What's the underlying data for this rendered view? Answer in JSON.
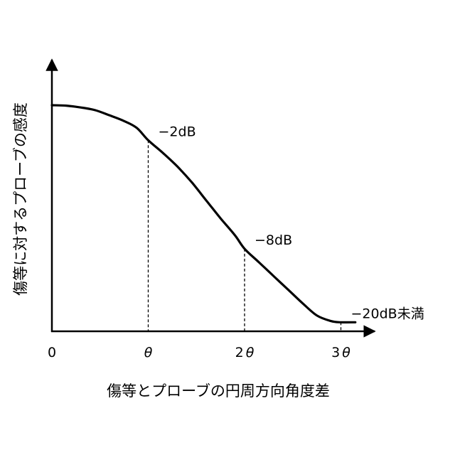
{
  "chart_data": {
    "type": "line",
    "xlabel": "傷等とプローブの円周方向角度差",
    "ylabel": "傷等に対するプローブの感度",
    "x_ticks": [
      {
        "x": 0,
        "label_parts": [
          {
            "text": "0",
            "italic": false
          }
        ]
      },
      {
        "x": 1,
        "label_parts": [
          {
            "text": "θ",
            "italic": true
          }
        ]
      },
      {
        "x": 2,
        "label_parts": [
          {
            "text": "2",
            "italic": false
          },
          {
            "text": "θ",
            "italic": true
          }
        ]
      },
      {
        "x": 3,
        "label_parts": [
          {
            "text": "3",
            "italic": false
          },
          {
            "text": "θ",
            "italic": true
          }
        ]
      }
    ],
    "xlim": [
      0,
      3.35
    ],
    "ylim": [
      0,
      1
    ],
    "series": [
      {
        "values_y_fraction_of_axis": [
          [
            0.0,
            1.0
          ],
          [
            0.15,
            0.998
          ],
          [
            0.3,
            0.99
          ],
          [
            0.45,
            0.978
          ],
          [
            0.6,
            0.955
          ],
          [
            0.75,
            0.93
          ],
          [
            0.88,
            0.9
          ],
          [
            1.0,
            0.845
          ],
          [
            1.15,
            0.79
          ],
          [
            1.3,
            0.73
          ],
          [
            1.45,
            0.66
          ],
          [
            1.6,
            0.58
          ],
          [
            1.75,
            0.5
          ],
          [
            1.9,
            0.425
          ],
          [
            2.0,
            0.365
          ],
          [
            2.15,
            0.305
          ],
          [
            2.3,
            0.245
          ],
          [
            2.45,
            0.185
          ],
          [
            2.6,
            0.125
          ],
          [
            2.75,
            0.07
          ],
          [
            2.9,
            0.045
          ],
          [
            3.0,
            0.04
          ],
          [
            3.15,
            0.04
          ]
        ]
      }
    ],
    "guides": [
      {
        "x": 1,
        "y": 0.845,
        "label": "−2dB",
        "label_pos": "right"
      },
      {
        "x": 2,
        "y": 0.365,
        "label": "−8dB",
        "label_pos": "right"
      },
      {
        "x": 3,
        "y": 0.04,
        "label": "−20dB未満",
        "label_pos": "right"
      }
    ],
    "grid": false,
    "legend": "none"
  }
}
